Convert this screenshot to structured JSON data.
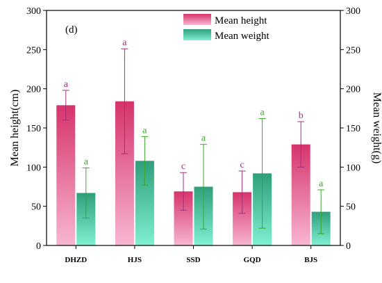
{
  "chart_data": {
    "type": "bar",
    "panel_label": "(d)",
    "categories": [
      "DHZD",
      "HJS",
      "SSD",
      "GQD",
      "BJS"
    ],
    "ylabel_left": "Mean height(cm)",
    "ylabel_right": "Mean weight(g)",
    "ylim_left": [
      0,
      300
    ],
    "ylim_right": [
      0,
      300
    ],
    "yticks_left": [
      0,
      50,
      100,
      150,
      200,
      250,
      300
    ],
    "yticks_right": [
      0,
      50,
      100,
      150,
      200,
      250,
      300
    ],
    "grid": false,
    "legend_position": "top-right",
    "series": [
      {
        "name": "Mean height",
        "axis": "left",
        "color_top": "#d6336c",
        "color_bottom": "#f7b6d2",
        "label_color": "#a0307a",
        "values": [
          179,
          184,
          69,
          68,
          129
        ],
        "error": [
          19,
          67,
          24,
          27,
          29
        ],
        "sig_labels": [
          "a",
          "a",
          "c",
          "c",
          "b"
        ]
      },
      {
        "name": "Mean weight",
        "axis": "right",
        "color_top": "#2e9f7a",
        "color_bottom": "#7ff0d2",
        "label_color": "#3aa62a",
        "values": [
          67,
          108,
          75,
          92,
          43
        ],
        "error": [
          32,
          31,
          54,
          70,
          28
        ],
        "sig_labels": [
          "a",
          "a",
          "a",
          "a",
          "a"
        ]
      }
    ]
  }
}
